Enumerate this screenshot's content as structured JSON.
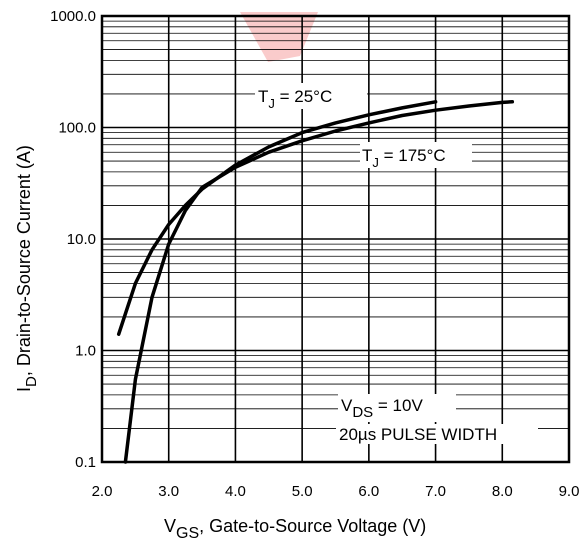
{
  "chart_data": {
    "type": "line",
    "x_scale": "linear",
    "y_scale": "log",
    "xlim": [
      2.0,
      9.0
    ],
    "ylim": [
      0.1,
      1000.0
    ],
    "grid": true,
    "watermark_color": "#f5a0a0",
    "x_ticks": [
      "2.0",
      "3.0",
      "4.0",
      "5.0",
      "6.0",
      "7.0",
      "8.0",
      "9.0"
    ],
    "y_ticks": [
      "0.1",
      "1.0",
      "10.0",
      "100.0",
      "1000.0"
    ],
    "xlabel": {
      "main": "V",
      "sub": "GS",
      "rest": ", Gate-to-Source Voltage (V)"
    },
    "ylabel": {
      "main": "I",
      "sub": "D",
      "rest": ", Drain-to-Source Current  (A)"
    },
    "series": [
      {
        "name": "TJ = 25°C",
        "x": [
          2.25,
          2.5,
          2.75,
          3.0,
          3.25,
          3.5,
          4.0,
          4.5,
          5.0,
          5.5,
          6.0,
          6.5,
          7.0
        ],
        "y": [
          1.4,
          4.0,
          8.0,
          13.5,
          20.0,
          28.0,
          46.0,
          67.0,
          90.0,
          110.0,
          130.0,
          150.0,
          170.0
        ]
      },
      {
        "name": "TJ = 175°C",
        "x": [
          2.35,
          2.5,
          2.75,
          3.0,
          3.25,
          3.5,
          4.0,
          4.5,
          5.0,
          5.5,
          6.0,
          6.5,
          7.0,
          7.5,
          8.0,
          8.15
        ],
        "y": [
          0.1,
          0.55,
          3.0,
          9.0,
          18.0,
          29.0,
          44.0,
          60.0,
          76.0,
          93.0,
          110.0,
          128.0,
          143.0,
          156.0,
          168.0,
          170.0
        ]
      }
    ],
    "annotations": {
      "tj25": {
        "main": "T",
        "sub": "J",
        "rest": " = 25°C"
      },
      "tj175": {
        "main": "T",
        "sub": "J",
        "rest": " = 175°C"
      },
      "vds": {
        "main": "V",
        "sub": "DS",
        "rest": " = 10V"
      },
      "pulse": "20µs PULSE WIDTH"
    }
  }
}
